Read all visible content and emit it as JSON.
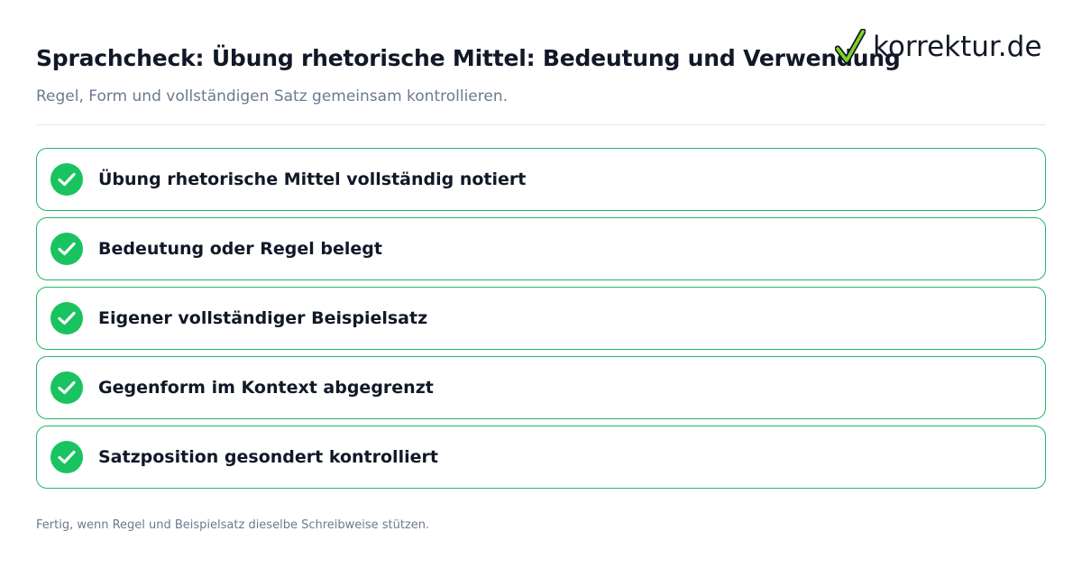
{
  "header": {
    "title": "Sprachcheck: Übung rhetorische Mittel: Bedeutung und Verwendung",
    "subtitle": "Regel, Form und vollständigen Satz gemeinsam kontrollieren."
  },
  "logo": {
    "text": "korrektur.de",
    "icon": "checkmark-icon",
    "icon_color": "#7ed321"
  },
  "checklist": {
    "check_color": "#19c35f",
    "border_color": "#1fb667",
    "items": [
      {
        "label": "Übung rhetorische Mittel vollständig notiert"
      },
      {
        "label": "Bedeutung oder Regel belegt"
      },
      {
        "label": "Eigener vollständiger Beispielsatz"
      },
      {
        "label": "Gegenform im Kontext abgegrenzt"
      },
      {
        "label": "Satzposition gesondert kontrolliert"
      }
    ]
  },
  "footer": {
    "note": "Fertig, wenn Regel und Beispielsatz dieselbe Schreibweise stützen."
  }
}
